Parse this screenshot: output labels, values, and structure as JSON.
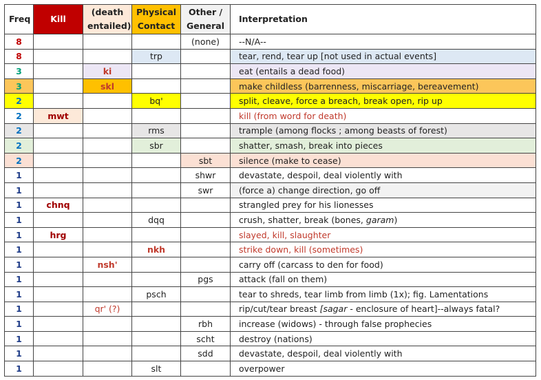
{
  "table": {
    "header": [
      "Freq",
      "Kill",
      "(death entailed)",
      "Physical Contact",
      "Other / General",
      "Interpretation"
    ],
    "rows": [
      [
        "8",
        null,
        null,
        null,
        "(none)",
        "--N/A--"
      ],
      [
        "8",
        null,
        null,
        "trp",
        null,
        "tear, rend, tear up [not used in actual events]"
      ],
      [
        "3",
        null,
        "ki",
        null,
        null,
        "eat (entails a dead food)"
      ],
      [
        "3",
        null,
        "skl",
        null,
        null,
        "make childless (barrenness, miscarriage, bereavement)"
      ],
      [
        "2",
        null,
        null,
        "bq'",
        null,
        "split, cleave, force a breach, break open, rip up"
      ],
      [
        "2",
        "mwt",
        null,
        null,
        null,
        "kill (from word for death)"
      ],
      [
        "2",
        null,
        null,
        "rms",
        null,
        "trample (among flocks ; among beasts of forest)"
      ],
      [
        "2",
        null,
        null,
        "sbr",
        null,
        "shatter, smash, break into pieces"
      ],
      [
        "2",
        null,
        null,
        null,
        "sbt",
        "silence (make to cease)"
      ],
      [
        "1",
        null,
        null,
        null,
        "shwr",
        "devastate, despoil, deal violently with"
      ],
      [
        "1",
        null,
        null,
        null,
        "swr",
        "(force a) change direction, go off"
      ],
      [
        "1",
        "chnq",
        null,
        null,
        null,
        "strangled prey for his lionesses"
      ],
      [
        "1",
        null,
        null,
        "dqq",
        null,
        [
          "crush, shatter, break (bones, ",
          "garam",
          ")"
        ]
      ],
      [
        "1",
        "hrg",
        null,
        null,
        null,
        "slayed, kill, slaughter"
      ],
      [
        "1",
        null,
        null,
        "nkh",
        null,
        "strike down, kill (sometimes)"
      ],
      [
        "1",
        null,
        "nsh'",
        null,
        null,
        "carry off (carcass to den for food)"
      ],
      [
        "1",
        null,
        null,
        null,
        "pgs",
        "attack (fall on them)"
      ],
      [
        "1",
        null,
        null,
        "psch",
        null,
        "tear to shreds, tear limb from limb (1x); fig. Lamentations"
      ],
      [
        "1",
        null,
        "qr' (?)",
        null,
        null,
        [
          "rip/cut/tear breast ",
          "[sagar",
          "  - enclosure of heart]--always fatal?"
        ]
      ],
      [
        "1",
        null,
        null,
        null,
        "rbh",
        "increase (widows) - through false prophecies"
      ],
      [
        "1",
        null,
        null,
        null,
        "scht",
        "destroy (nations)"
      ],
      [
        "1",
        null,
        null,
        null,
        "sdd",
        "devastate, despoil, deal violently with"
      ],
      [
        "1",
        null,
        null,
        "slt",
        null,
        "overpower"
      ]
    ]
  }
}
